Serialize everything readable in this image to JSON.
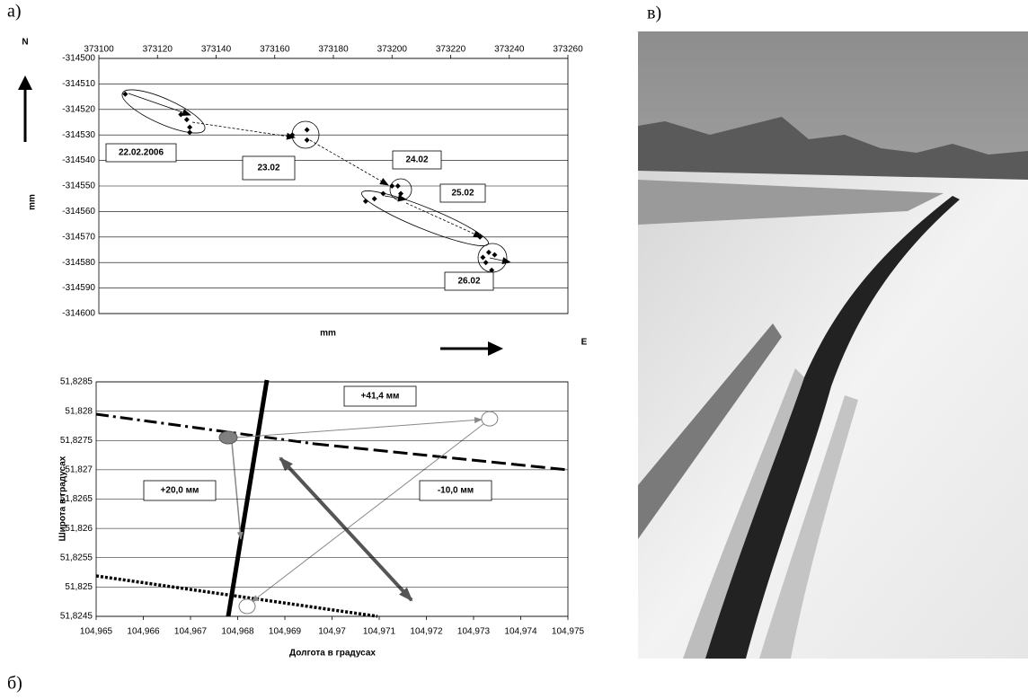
{
  "panel_labels": [
    "а)",
    "б)",
    "в)"
  ],
  "chart_data": [
    {
      "type": "scatter",
      "x_label": "mm",
      "y_label": "mm",
      "north_label": "N",
      "east_label": "E",
      "xlim": [
        373100,
        373260
      ],
      "xticks": [
        373100,
        373120,
        373140,
        373160,
        373180,
        373200,
        373220,
        373240,
        373260
      ],
      "ylim": [
        -314600,
        -314500
      ],
      "yticks": [
        -314500,
        -314510,
        -314520,
        -314530,
        -314540,
        -314550,
        -314560,
        -314570,
        -314580,
        -314590,
        -314600
      ],
      "grid": true,
      "color": "#000000",
      "annotations": [
        "22.02.2006",
        "23.02",
        "24.02",
        "25.02",
        "26.02"
      ],
      "x": [
        373109,
        373128,
        373130,
        373131,
        373131,
        373166,
        373171,
        373171,
        373200,
        373202,
        373203,
        373191,
        373194,
        373197,
        373230,
        373231,
        373233,
        373232,
        373235,
        373234
      ],
      "values": [
        -314514,
        -314522,
        -314524,
        -314527,
        -314529,
        -314530,
        -314528,
        -314532,
        -314550,
        -314550,
        -314553,
        -314556,
        -314555,
        -314553,
        -314570,
        -314578,
        -314576,
        -314580,
        -314577,
        -314583
      ]
    },
    {
      "type": "scatter",
      "x_label": "Долгота в градусах",
      "y_label": "Широта в градусах",
      "xlim": [
        104.965,
        104.975
      ],
      "xticks": [
        {
          "value": 104.965,
          "label": "104,965"
        },
        {
          "value": 104.966,
          "label": "104,966"
        },
        {
          "value": 104.967,
          "label": "104,967"
        },
        {
          "value": 104.968,
          "label": "104,968"
        },
        {
          "value": 104.969,
          "label": "104,969"
        },
        {
          "value": 104.97,
          "label": "104,97"
        },
        {
          "value": 104.971,
          "label": "104,971"
        },
        {
          "value": 104.972,
          "label": "104,972"
        },
        {
          "value": 104.973,
          "label": "104,973"
        },
        {
          "value": 104.974,
          "label": "104,974"
        },
        {
          "value": 104.975,
          "label": "104,975"
        }
      ],
      "ylim": [
        51.8245,
        51.8285
      ],
      "yticks": [
        {
          "value": 51.8285,
          "label": "51,8285"
        },
        {
          "value": 51.828,
          "label": "51,828"
        },
        {
          "value": 51.8275,
          "label": "51,8275"
        },
        {
          "value": 51.827,
          "label": "51,827"
        },
        {
          "value": 51.8265,
          "label": "51,8265"
        },
        {
          "value": 51.826,
          "label": "51,826"
        },
        {
          "value": 51.8255,
          "label": "51,8255"
        },
        {
          "value": 51.825,
          "label": "51,825"
        },
        {
          "value": 51.8245,
          "label": "51,8245"
        }
      ],
      "grid": true,
      "color": "#808080",
      "annotations": [
        "+41,4 мм",
        "+20,0 мм",
        "-10,0 мм"
      ],
      "x": [
        104.9678,
        104.97334,
        104.9682
      ],
      "values": [
        51.82755,
        51.82787,
        51.82467
      ]
    }
  ]
}
